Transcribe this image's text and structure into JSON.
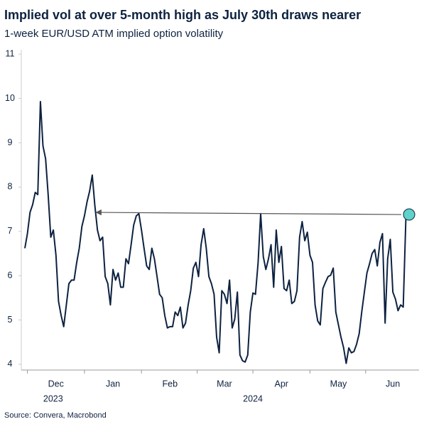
{
  "chart_data": {
    "type": "line",
    "title": "Implied vol at over 5-month high as July 30th draws nearer",
    "subtitle": "1-week EUR/USD ATM implied option volatility",
    "source": "Source: Convera, Macrobond",
    "ylim": [
      3.87,
      11.1
    ],
    "yticks": [
      4,
      5,
      6,
      7,
      8,
      9,
      10,
      11
    ],
    "categories": [
      null,
      null,
      null,
      null,
      null,
      null,
      null,
      null,
      null,
      null,
      null,
      null,
      "Dec",
      null,
      null,
      null,
      null,
      null,
      null,
      null,
      null,
      null,
      null,
      null,
      null,
      null,
      null,
      null,
      null,
      null,
      null,
      null,
      null,
      null,
      "Jan",
      null,
      null,
      null,
      null,
      null,
      null,
      null,
      null,
      null,
      null,
      null,
      null,
      null,
      null,
      null,
      null,
      null,
      null,
      null,
      null,
      null,
      "Feb",
      null,
      null,
      null,
      null,
      null,
      null,
      null,
      null,
      null,
      null,
      null,
      null,
      null,
      null,
      null,
      null,
      null,
      null,
      null,
      null,
      "Mar",
      null,
      null,
      null,
      null,
      null,
      null,
      null,
      null,
      null,
      null,
      null,
      null,
      null,
      null,
      null,
      null,
      null,
      null,
      null,
      null,
      null,
      "Apr",
      null,
      null,
      null,
      null,
      null,
      null,
      null,
      null,
      null,
      null,
      null,
      null,
      null,
      null,
      null,
      null,
      null,
      null,
      null,
      null,
      null,
      "May",
      null,
      null,
      null,
      null,
      null,
      null,
      null,
      null,
      null,
      null,
      null,
      null,
      null,
      null,
      null,
      null,
      null,
      null,
      null,
      null,
      "Jun",
      null,
      null,
      null,
      null,
      null,
      null
    ],
    "years": [
      {
        "label": "2023",
        "from": "Dec",
        "to": "Dec"
      },
      {
        "label": "2024",
        "from": "Jan",
        "to": "Jun"
      }
    ],
    "series": [
      {
        "name": "1-week EUR/USD ATM implied vol",
        "color": "#0d2240",
        "values": [
          6.62,
          6.95,
          7.43,
          7.6,
          7.88,
          7.83,
          9.93,
          8.93,
          8.64,
          7.83,
          6.87,
          7.03,
          6.46,
          5.42,
          5.1,
          4.85,
          5.34,
          5.82,
          5.9,
          5.9,
          6.3,
          6.62,
          7.11,
          7.35,
          7.67,
          7.91,
          8.27,
          7.59,
          7.03,
          6.79,
          6.87,
          5.98,
          5.82,
          5.34,
          6.14,
          5.9,
          6.06,
          5.74,
          5.74,
          6.38,
          6.27,
          6.7,
          7.14,
          7.35,
          7.4,
          7.03,
          6.62,
          6.22,
          6.14,
          6.62,
          6.38,
          5.98,
          5.58,
          5.5,
          5.1,
          4.82,
          4.85,
          4.85,
          5.18,
          5.1,
          5.29,
          4.82,
          4.93,
          5.34,
          5.66,
          6.17,
          6.3,
          5.98,
          6.7,
          7.06,
          6.62,
          5.98,
          5.82,
          5.58,
          4.61,
          4.26,
          5.66,
          5.58,
          5.37,
          5.9,
          4.82,
          5.02,
          5.63,
          4.21,
          4.08,
          4.05,
          4.21,
          5.18,
          5.61,
          5.58,
          6.3,
          7.4,
          6.43,
          6.14,
          6.38,
          6.7,
          5.74,
          7.03,
          6.3,
          6.66,
          5.71,
          5.66,
          5.9,
          5.37,
          5.42,
          5.66,
          6.87,
          7.22,
          6.79,
          6.98,
          6.46,
          6.3,
          5.34,
          4.98,
          4.89,
          5.71,
          5.85,
          5.98,
          6.01,
          6.17,
          5.18,
          4.89,
          4.61,
          4.37,
          4.02,
          4.37,
          4.26,
          4.29,
          4.45,
          4.69,
          5.18,
          5.63,
          6.06,
          6.27,
          6.5,
          6.59,
          6.22,
          6.75,
          6.95,
          4.93,
          6.38,
          6.82,
          5.63,
          5.47,
          5.21,
          5.34,
          5.29,
          7.27,
          7.38
        ]
      }
    ]
  }
}
